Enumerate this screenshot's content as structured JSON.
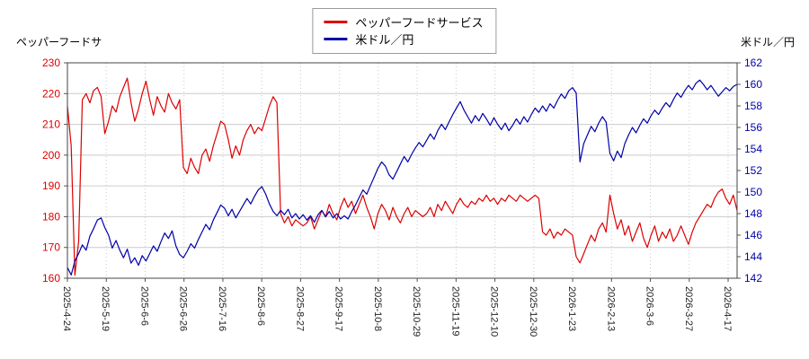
{
  "chart_data": {
    "type": "line",
    "legend": [
      {
        "label": "ペッパーフードサービス",
        "color": "#dd0000"
      },
      {
        "label": "米ドル／円",
        "color": "#0000a8"
      }
    ],
    "left_axis": {
      "title": "ペッパーフードサ",
      "min": 160,
      "max": 230,
      "ticks": [
        230,
        220,
        210,
        200,
        190,
        180,
        170,
        160
      ],
      "color": "#dd0000"
    },
    "right_axis": {
      "title": "米ドル／円",
      "min": 142,
      "max": 162,
      "ticks": [
        162,
        160,
        158,
        156,
        154,
        152,
        150,
        148,
        146,
        144,
        142
      ],
      "color": "#0000a8"
    },
    "x_tick_labels": [
      "2025-4-24",
      "2025-5-19",
      "2025-6-6",
      "2025-6-26",
      "2025-7-16",
      "2025-8-6",
      "2025-8-27",
      "2025-9-17",
      "2025-10-8",
      "2025-10-29",
      "2025-11-19",
      "2025-12-10",
      "2025-12-30",
      "2026-1-23",
      "2026-2-13",
      "2026-3-6",
      "2026-3-27",
      "2026-4-17"
    ],
    "grid": true,
    "series": [
      {
        "name": "ペッパーフードサービス",
        "axis": "left",
        "color": "#dd0000",
        "values": [
          216,
          203,
          161,
          172,
          218,
          220,
          217,
          221,
          222,
          219,
          207,
          211,
          216,
          214,
          219,
          222,
          225,
          217,
          211,
          215,
          220,
          224,
          218,
          213,
          219,
          216,
          214,
          220,
          217,
          215,
          218,
          196,
          194,
          199,
          196,
          194,
          200,
          202,
          198,
          203,
          207,
          211,
          210,
          205,
          199,
          203,
          200,
          205,
          208,
          210,
          207,
          209,
          208,
          212,
          216,
          219,
          217,
          181,
          178,
          180,
          177,
          179,
          178,
          177,
          178,
          180,
          176,
          179,
          182,
          180,
          184,
          181,
          179,
          183,
          186,
          183,
          185,
          181,
          184,
          187,
          183,
          180,
          176,
          181,
          184,
          182,
          179,
          183,
          180,
          178,
          181,
          183,
          180,
          182,
          181,
          180,
          181,
          183,
          180,
          184,
          182,
          185,
          183,
          181,
          184,
          186,
          184,
          183,
          185,
          184,
          186,
          185,
          187,
          185,
          186,
          184,
          186,
          185,
          187,
          186,
          185,
          187,
          186,
          185,
          186,
          187,
          186,
          175,
          174,
          176,
          173,
          175,
          174,
          176,
          175,
          174,
          167,
          165,
          168,
          171,
          174,
          172,
          176,
          178,
          175,
          187,
          181,
          176,
          179,
          174,
          177,
          172,
          175,
          178,
          173,
          170,
          174,
          177,
          172,
          175,
          173,
          176,
          172,
          174,
          177,
          174,
          171,
          175,
          178,
          180,
          182,
          184,
          183,
          186,
          188,
          189,
          186,
          184,
          187,
          182
        ]
      },
      {
        "name": "米ドル／円",
        "axis": "right",
        "color": "#0000a8",
        "values": [
          143.0,
          142.3,
          143.6,
          144.3,
          145.1,
          144.6,
          145.9,
          146.6,
          147.4,
          147.6,
          146.7,
          146.0,
          144.8,
          145.5,
          144.6,
          143.9,
          144.7,
          143.4,
          143.9,
          143.2,
          144.1,
          143.6,
          144.3,
          145.0,
          144.5,
          145.4,
          146.2,
          145.7,
          146.4,
          145.0,
          144.2,
          143.9,
          144.5,
          145.2,
          144.8,
          145.6,
          146.3,
          147.0,
          146.5,
          147.4,
          148.1,
          148.8,
          148.5,
          147.8,
          148.4,
          147.6,
          148.2,
          148.8,
          149.4,
          148.9,
          149.6,
          150.2,
          150.5,
          149.8,
          148.9,
          148.2,
          147.8,
          148.3,
          147.9,
          148.4,
          147.6,
          148.0,
          147.5,
          147.9,
          147.4,
          147.8,
          147.2,
          147.9,
          148.3,
          147.7,
          148.2,
          147.6,
          148.0,
          147.5,
          147.8,
          147.5,
          148.2,
          148.8,
          149.5,
          150.2,
          149.8,
          150.6,
          151.4,
          152.2,
          152.8,
          152.4,
          151.6,
          151.2,
          151.9,
          152.6,
          153.3,
          152.8,
          153.5,
          154.1,
          154.6,
          154.2,
          154.8,
          155.4,
          154.9,
          155.7,
          156.3,
          155.8,
          156.5,
          157.2,
          157.8,
          158.4,
          157.6,
          157.0,
          156.4,
          157.1,
          156.6,
          157.3,
          156.8,
          156.2,
          156.9,
          156.3,
          155.8,
          156.4,
          155.7,
          156.2,
          156.8,
          156.3,
          157.0,
          156.5,
          157.2,
          157.8,
          157.4,
          158.0,
          157.5,
          158.2,
          157.8,
          158.5,
          159.1,
          158.7,
          159.4,
          159.7,
          159.2,
          152.8,
          154.5,
          155.3,
          156.1,
          155.6,
          156.4,
          157.0,
          156.5,
          153.6,
          152.9,
          153.8,
          153.2,
          154.5,
          155.3,
          156.0,
          155.5,
          156.2,
          156.8,
          156.4,
          157.1,
          157.6,
          157.2,
          157.8,
          158.3,
          157.9,
          158.6,
          159.2,
          158.8,
          159.4,
          159.9,
          159.5,
          160.1,
          160.4,
          160.0,
          159.5,
          159.9,
          159.4,
          158.9,
          159.3,
          159.7,
          159.4,
          159.8,
          160.0
        ]
      }
    ]
  }
}
